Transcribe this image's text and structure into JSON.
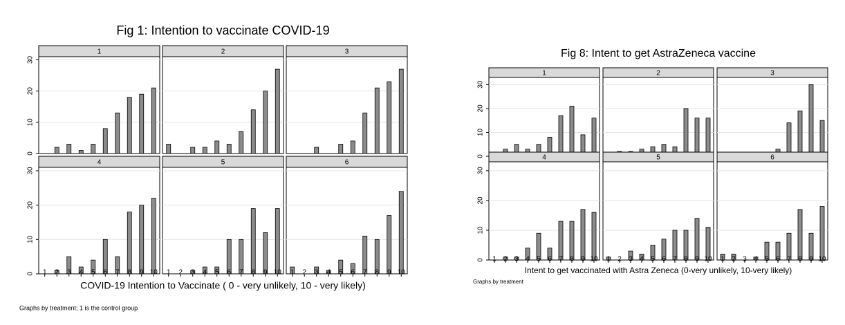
{
  "chart_data": [
    {
      "type": "bar",
      "title": "Fig 1: Intention to vaccinate COVID-19",
      "xlabel": "COVID-19 Intention to Vaccinate ( 0 - very unlikely, 10 - very likely)",
      "note": "Graphs by treatment; 1 is the control group",
      "categories": [
        1,
        2,
        3,
        4,
        5,
        6,
        7,
        8,
        9,
        10
      ],
      "ylim": [
        0,
        31
      ],
      "yticks": [
        0,
        10,
        20,
        30
      ],
      "grid": true,
      "color": "#8c8c8c",
      "panels": [
        {
          "name": "1",
          "values": [
            0,
            2,
            3,
            1,
            3,
            8,
            13,
            18,
            19,
            21
          ]
        },
        {
          "name": "2",
          "values": [
            3,
            0,
            2,
            2,
            4,
            3,
            7,
            14,
            20,
            27
          ]
        },
        {
          "name": "3",
          "values": [
            0,
            0,
            2,
            0,
            3,
            4,
            13,
            21,
            23,
            27
          ]
        },
        {
          "name": "4",
          "values": [
            0,
            1,
            5,
            2,
            4,
            10,
            5,
            18,
            20,
            22
          ]
        },
        {
          "name": "5",
          "values": [
            0,
            0,
            1,
            2,
            2,
            10,
            10,
            19,
            12,
            19
          ]
        },
        {
          "name": "6",
          "values": [
            2,
            0,
            2,
            1,
            4,
            3,
            11,
            10,
            17,
            24
          ]
        }
      ]
    },
    {
      "type": "bar",
      "title": "Fig 8: Intent to get AstraZeneca vaccine",
      "xlabel": "Intent to get vaccinated with Astra Zeneca (0-very unlikely, 10-very likely)",
      "note": "Graphs by treatment",
      "categories": [
        1,
        2,
        3,
        4,
        5,
        6,
        7,
        8,
        9,
        10
      ],
      "ylim": [
        0,
        33
      ],
      "yticks": [
        0,
        10,
        20,
        30
      ],
      "grid": true,
      "color": "#8c8c8c",
      "panels": [
        {
          "name": "1",
          "values": [
            1,
            3,
            5,
            3,
            5,
            8,
            17,
            21,
            9,
            16
          ]
        },
        {
          "name": "2",
          "values": [
            1,
            2,
            2,
            3,
            4,
            5,
            4,
            20,
            16,
            16
          ]
        },
        {
          "name": "3",
          "values": [
            0,
            0,
            0,
            0,
            1,
            3,
            14,
            19,
            30,
            15
          ]
        },
        {
          "name": "4",
          "values": [
            0,
            1,
            1,
            4,
            9,
            4,
            13,
            13,
            17,
            16
          ]
        },
        {
          "name": "5",
          "values": [
            1,
            0,
            3,
            2,
            5,
            7,
            10,
            10,
            14,
            11
          ]
        },
        {
          "name": "6",
          "values": [
            2,
            2,
            0,
            1,
            6,
            6,
            9,
            17,
            9,
            18
          ]
        }
      ]
    }
  ]
}
